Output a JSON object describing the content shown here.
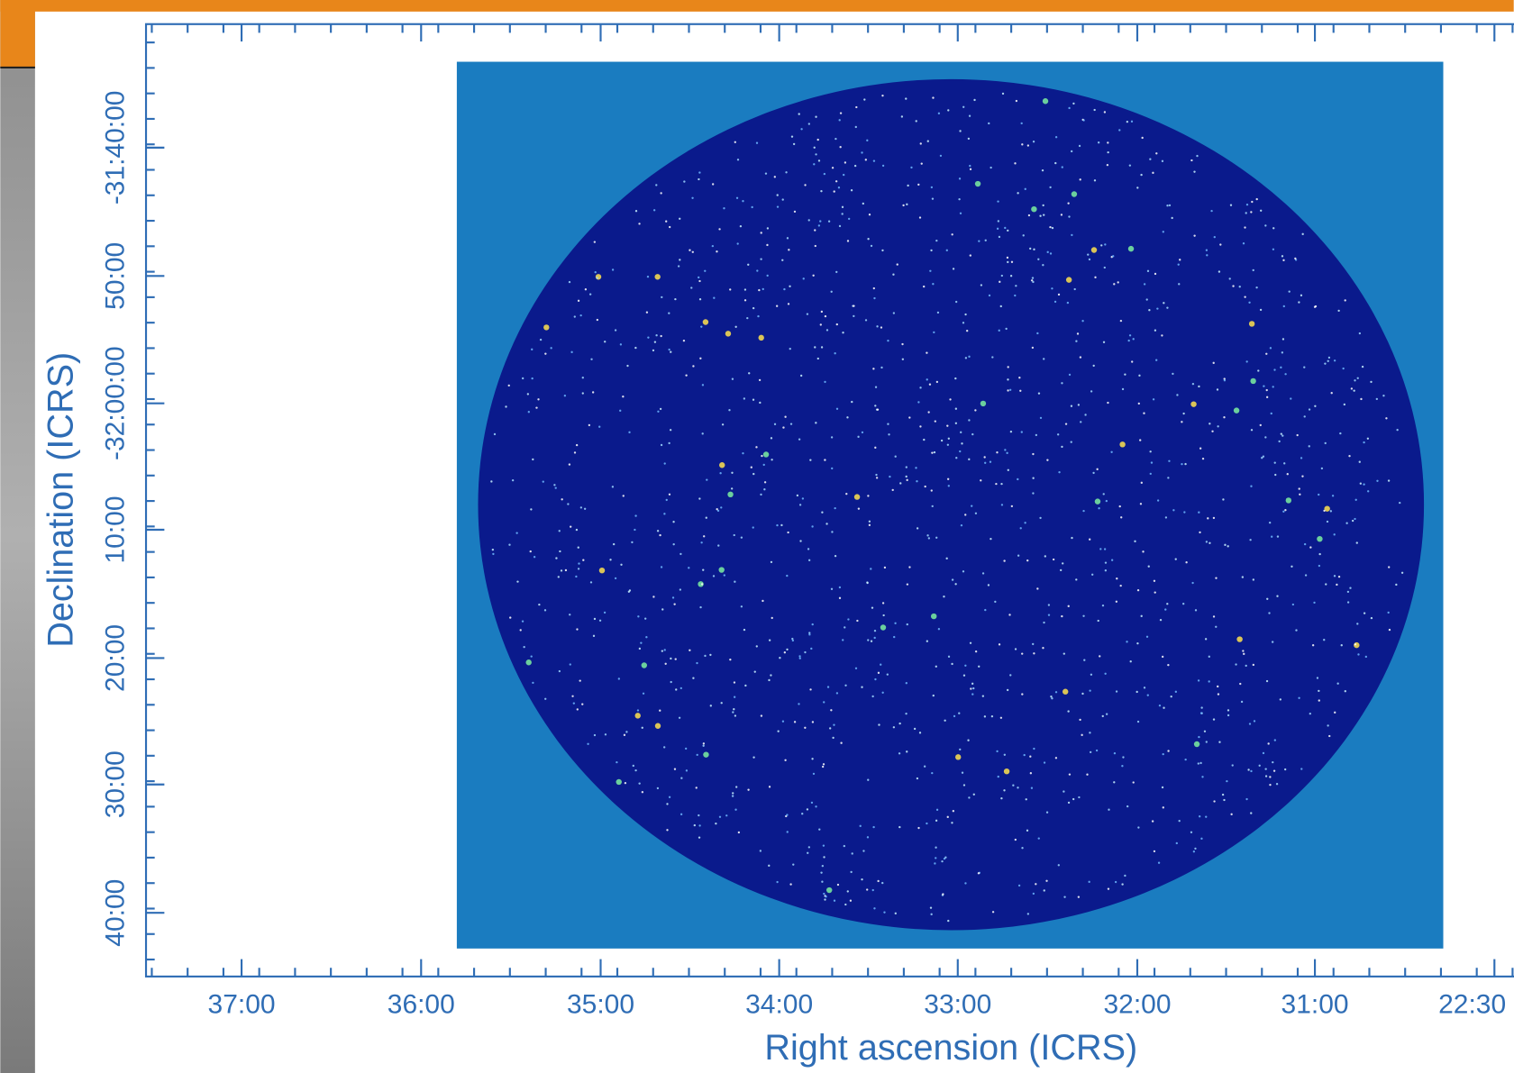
{
  "figure": {
    "x_axis": {
      "label": "Right ascension (ICRS)",
      "ticks": [
        "37:00",
        "36:00",
        "35:00",
        "34:00",
        "33:00",
        "32:00",
        "31:00",
        "22:30"
      ]
    },
    "y_axis": {
      "label": "Declination (ICRS)",
      "ticks": [
        "-31:40:00",
        "50:00",
        "-32:00:00",
        "10:00",
        "20:00",
        "30:00",
        "40:00"
      ]
    }
  }
}
